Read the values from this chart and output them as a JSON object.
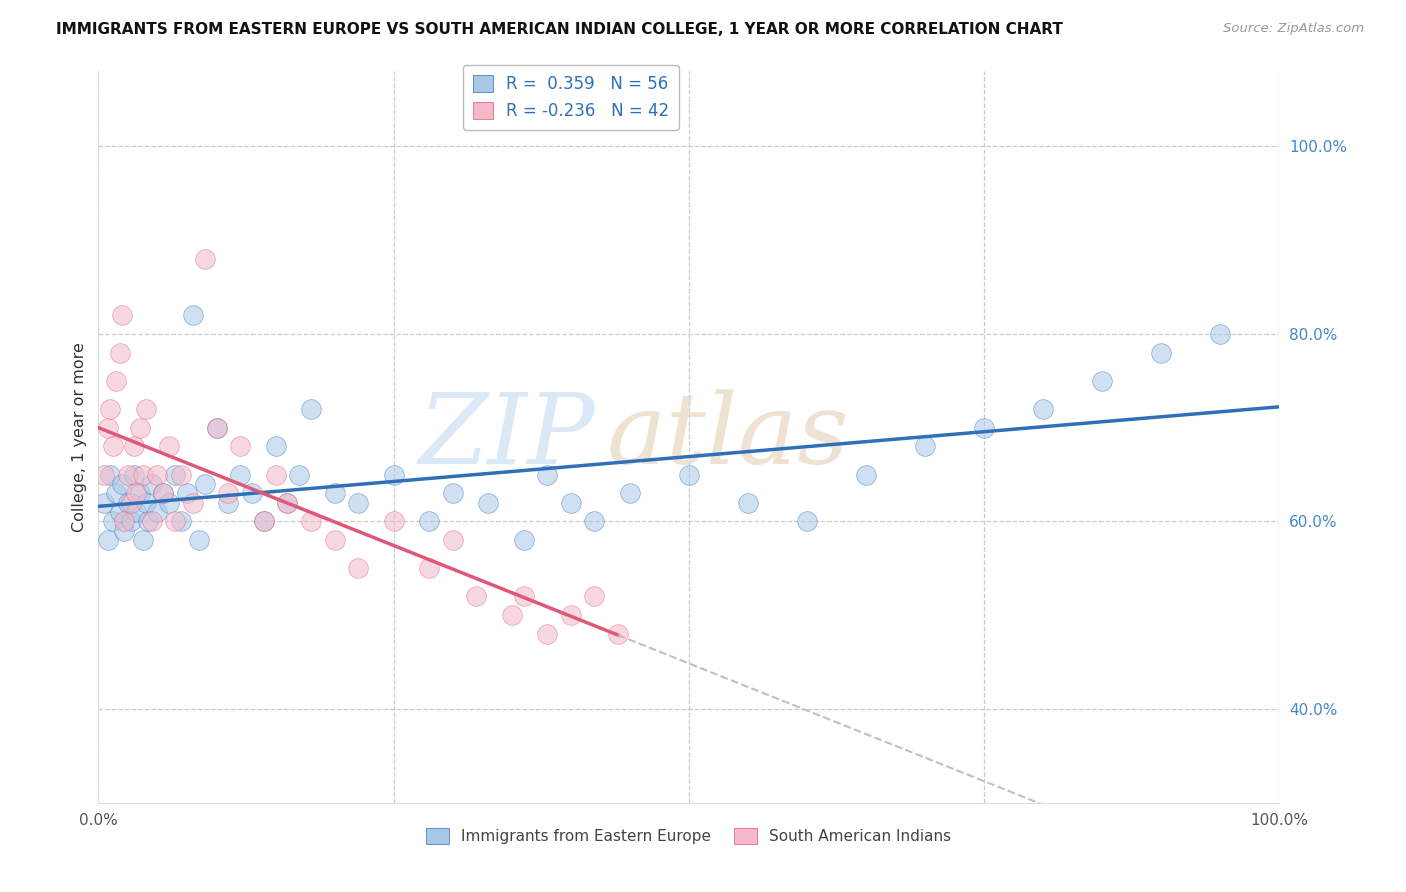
{
  "title": "IMMIGRANTS FROM EASTERN EUROPE VS SOUTH AMERICAN INDIAN COLLEGE, 1 YEAR OR MORE CORRELATION CHART",
  "source": "Source: ZipAtlas.com",
  "ylabel": "College, 1 year or more",
  "r_blue": 0.359,
  "n_blue": 56,
  "r_pink": -0.236,
  "n_pink": 42,
  "legend_label_blue": "Immigrants from Eastern Europe",
  "legend_label_pink": "South American Indians",
  "blue_color": "#a8c8e8",
  "pink_color": "#f4b8c8",
  "blue_line_color": "#3070b8",
  "pink_line_color": "#e05878",
  "dashed_ext_color": "#ccbbbb",
  "ymin": 0.3,
  "ymax": 1.08,
  "xmin": 0.0,
  "xmax": 1.0,
  "yticks": [
    0.4,
    0.6,
    0.8,
    1.0
  ],
  "ytick_labels": [
    "40.0%",
    "60.0%",
    "80.0%",
    "100.0%"
  ],
  "blue_x": [
    0.005,
    0.008,
    0.01,
    0.012,
    0.015,
    0.018,
    0.02,
    0.022,
    0.025,
    0.028,
    0.03,
    0.032,
    0.035,
    0.038,
    0.04,
    0.042,
    0.045,
    0.05,
    0.055,
    0.06,
    0.065,
    0.07,
    0.075,
    0.08,
    0.085,
    0.09,
    0.1,
    0.11,
    0.12,
    0.13,
    0.14,
    0.15,
    0.16,
    0.17,
    0.18,
    0.2,
    0.22,
    0.25,
    0.28,
    0.3,
    0.33,
    0.36,
    0.38,
    0.4,
    0.42,
    0.45,
    0.5,
    0.55,
    0.6,
    0.65,
    0.7,
    0.75,
    0.8,
    0.85,
    0.9,
    0.95
  ],
  "blue_y": [
    0.62,
    0.58,
    0.65,
    0.6,
    0.63,
    0.61,
    0.64,
    0.59,
    0.62,
    0.6,
    0.65,
    0.61,
    0.63,
    0.58,
    0.62,
    0.6,
    0.64,
    0.61,
    0.63,
    0.62,
    0.65,
    0.6,
    0.63,
    0.82,
    0.58,
    0.64,
    0.7,
    0.62,
    0.65,
    0.63,
    0.6,
    0.68,
    0.62,
    0.65,
    0.72,
    0.63,
    0.62,
    0.65,
    0.6,
    0.63,
    0.62,
    0.58,
    0.65,
    0.62,
    0.6,
    0.63,
    0.65,
    0.62,
    0.6,
    0.65,
    0.68,
    0.7,
    0.72,
    0.75,
    0.78,
    0.8
  ],
  "pink_x": [
    0.005,
    0.008,
    0.01,
    0.012,
    0.015,
    0.018,
    0.02,
    0.022,
    0.025,
    0.028,
    0.03,
    0.032,
    0.035,
    0.038,
    0.04,
    0.045,
    0.05,
    0.055,
    0.06,
    0.065,
    0.07,
    0.08,
    0.09,
    0.1,
    0.11,
    0.12,
    0.14,
    0.15,
    0.16,
    0.18,
    0.2,
    0.22,
    0.25,
    0.28,
    0.3,
    0.32,
    0.35,
    0.36,
    0.38,
    0.4,
    0.42,
    0.44
  ],
  "pink_y": [
    0.65,
    0.7,
    0.72,
    0.68,
    0.75,
    0.78,
    0.82,
    0.6,
    0.65,
    0.62,
    0.68,
    0.63,
    0.7,
    0.65,
    0.72,
    0.6,
    0.65,
    0.63,
    0.68,
    0.6,
    0.65,
    0.62,
    0.88,
    0.7,
    0.63,
    0.68,
    0.6,
    0.65,
    0.62,
    0.6,
    0.58,
    0.55,
    0.6,
    0.55,
    0.58,
    0.52,
    0.5,
    0.52,
    0.48,
    0.5,
    0.52,
    0.48
  ]
}
